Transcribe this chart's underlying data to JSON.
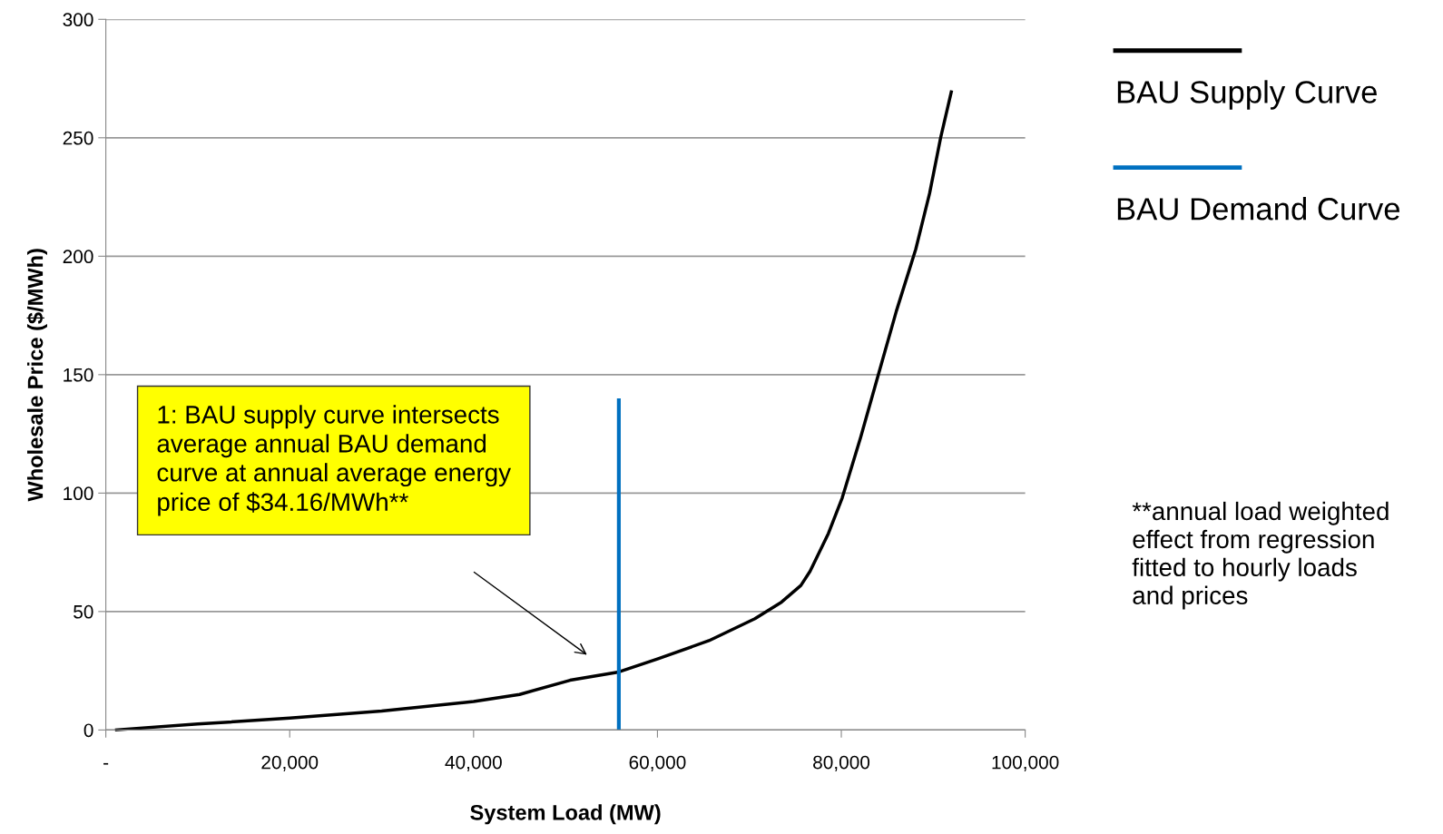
{
  "chart_data": {
    "type": "line",
    "xlabel": "System Load (MW)",
    "ylabel": "Wholesale Price ($/MWh)",
    "xlim": [
      0,
      100000
    ],
    "ylim": [
      0,
      300
    ],
    "xticks": [
      {
        "value": 0,
        "label": "-"
      },
      {
        "value": 20000,
        "label": "20,000"
      },
      {
        "value": 40000,
        "label": "40,000"
      },
      {
        "value": 60000,
        "label": "60,000"
      },
      {
        "value": 80000,
        "label": "80,000"
      },
      {
        "value": 100000,
        "label": "100,000"
      }
    ],
    "yticks": [
      0,
      50,
      100,
      150,
      200,
      250,
      300
    ],
    "grid": "y",
    "legend": "right",
    "series": [
      {
        "name": "BAU Supply Curve",
        "color": "#000000",
        "x": [
          1000,
          10000,
          20000,
          30000,
          40000,
          45000,
          50500,
          55800,
          60000,
          65600,
          70600,
          73500,
          75600,
          76600,
          78600,
          80100,
          82100,
          84100,
          86000,
          88100,
          89600,
          90800,
          92000
        ],
        "values": [
          0,
          2.5,
          5,
          8,
          12,
          15,
          21,
          24.5,
          30,
          37.7,
          47,
          54,
          61,
          67,
          83,
          98,
          123.5,
          151,
          177,
          203,
          226.5,
          250,
          270
        ]
      },
      {
        "name": "BAU Demand Curve",
        "color": "#0070c0",
        "x": [
          55800,
          55800
        ],
        "values": [
          0,
          140
        ]
      }
    ],
    "annotations": [
      "1: BAU supply curve intersects\naverage annual BAU demand\ncurve at annual average energy\nprice of $34.16/MWh**",
      "**annual load weighted\neffect from regression\nfitted to hourly loads\nand prices"
    ]
  }
}
